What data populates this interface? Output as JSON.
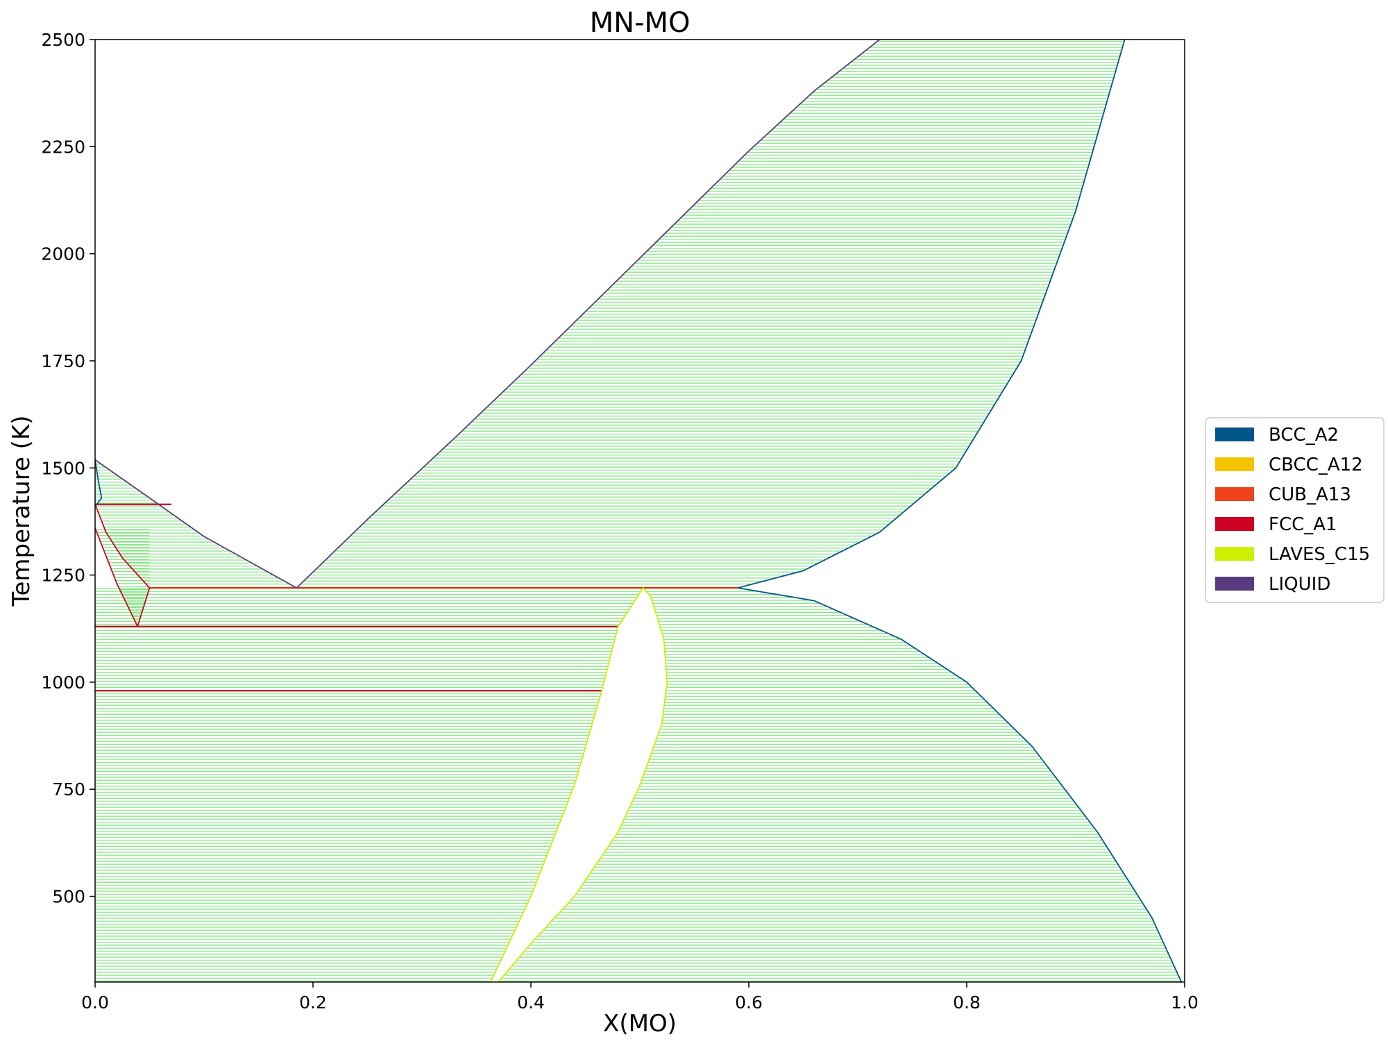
{
  "chart_data": {
    "type": "area",
    "title": "MN-MO",
    "xlabel": "X(MO)",
    "ylabel": "Temperature (K)",
    "xlim": [
      0.0,
      1.0
    ],
    "ylim": [
      300,
      2500
    ],
    "xticks": [
      0.0,
      0.2,
      0.4,
      0.6,
      0.8,
      1.0
    ],
    "xtick_labels": [
      "0.0",
      "0.2",
      "0.4",
      "0.6",
      "0.8",
      "1.0"
    ],
    "yticks": [
      500,
      750,
      1000,
      1250,
      1500,
      1750,
      2000,
      2250,
      2500
    ],
    "ytick_labels": [
      "500",
      "750",
      "1000",
      "1250",
      "1500",
      "1750",
      "2000",
      "2250",
      "2500"
    ],
    "grid": false,
    "legend_position": "right",
    "legend": [
      {
        "name": "BCC_A2",
        "color": "#00558a"
      },
      {
        "name": "CBCC_A12",
        "color": "#f5c400"
      },
      {
        "name": "CUB_A13",
        "color": "#f0421c"
      },
      {
        "name": "FCC_A1",
        "color": "#cc0022"
      },
      {
        "name": "LAVES_C15",
        "color": "#ccf000"
      },
      {
        "name": "LIQUID",
        "color": "#583b7f"
      }
    ],
    "tie_line_color": "#6fe06f",
    "two_phase_regions": [
      {
        "phases": "LIQUID+BCC_A2",
        "t_range": [
          1220,
          2500
        ],
        "left": [
          [
            0.185,
            1220
          ],
          [
            0.25,
            1380
          ],
          [
            0.33,
            1570
          ],
          [
            0.4,
            1740
          ],
          [
            0.5,
            1990
          ],
          [
            0.6,
            2240
          ],
          [
            0.66,
            2380
          ],
          [
            0.72,
            2500
          ]
        ],
        "right": [
          [
            0.59,
            1220
          ],
          [
            0.65,
            1260
          ],
          [
            0.72,
            1350
          ],
          [
            0.79,
            1500
          ],
          [
            0.85,
            1750
          ],
          [
            0.9,
            2100
          ],
          [
            0.945,
            2500
          ]
        ]
      },
      {
        "phases": "LIQUID+FCC_A1",
        "t_range": [
          1220,
          1519
        ],
        "left": [
          [
            0.185,
            1220
          ],
          [
            0.1,
            1340
          ],
          [
            0.05,
            1430
          ],
          [
            0.0,
            1519
          ]
        ],
        "right": [
          [
            0.05,
            1220
          ],
          [
            0.025,
            1290
          ],
          [
            0.01,
            1350
          ],
          [
            0.0,
            1415
          ]
        ]
      },
      {
        "phases": "FCC_A1+CUB_A13",
        "t_range": [
          1130,
          1360
        ],
        "left": [
          [
            0.039,
            1130
          ],
          [
            0.02,
            1230
          ],
          [
            0.0,
            1360
          ]
        ],
        "right": [
          [
            0.039,
            1130
          ],
          [
            0.05,
            1220
          ]
        ]
      },
      {
        "phases": "CUB_A13+LAVES_C15",
        "t_range": [
          300,
          1220
        ],
        "left": [
          [
            0.0,
            300
          ],
          [
            0.0,
            1220
          ]
        ],
        "right": [
          [
            0.363,
            300
          ],
          [
            0.4,
            500
          ],
          [
            0.44,
            760
          ],
          [
            0.465,
            980
          ],
          [
            0.48,
            1130
          ],
          [
            0.503,
            1220
          ]
        ]
      },
      {
        "phases": "LAVES_C15+BCC_A2",
        "t_range": [
          300,
          1220
        ],
        "left": [
          [
            0.37,
            300
          ],
          [
            0.4,
            390
          ],
          [
            0.44,
            500
          ],
          [
            0.48,
            650
          ],
          [
            0.5,
            760
          ],
          [
            0.52,
            900
          ],
          [
            0.525,
            1000
          ],
          [
            0.522,
            1100
          ],
          [
            0.51,
            1200
          ],
          [
            0.503,
            1220
          ]
        ],
        "right": [
          [
            0.997,
            300
          ],
          [
            0.97,
            450
          ],
          [
            0.92,
            650
          ],
          [
            0.86,
            850
          ],
          [
            0.8,
            1000
          ],
          [
            0.74,
            1100
          ],
          [
            0.66,
            1190
          ],
          [
            0.59,
            1220
          ]
        ]
      }
    ],
    "phase_boundaries": [
      {
        "phase": "LIQUID",
        "points": [
          [
            0.0,
            1519
          ],
          [
            0.05,
            1430
          ],
          [
            0.1,
            1340
          ],
          [
            0.185,
            1220
          ],
          [
            0.25,
            1380
          ],
          [
            0.33,
            1570
          ],
          [
            0.4,
            1740
          ],
          [
            0.5,
            1990
          ],
          [
            0.6,
            2240
          ],
          [
            0.66,
            2380
          ],
          [
            0.72,
            2500
          ]
        ]
      },
      {
        "phase": "BCC_A2",
        "points": [
          [
            0.945,
            2500
          ],
          [
            0.9,
            2100
          ],
          [
            0.85,
            1750
          ],
          [
            0.79,
            1500
          ],
          [
            0.72,
            1350
          ],
          [
            0.65,
            1260
          ],
          [
            0.59,
            1220
          ]
        ]
      },
      {
        "phase": "BCC_A2",
        "points": [
          [
            0.59,
            1220
          ],
          [
            0.66,
            1190
          ],
          [
            0.74,
            1100
          ],
          [
            0.8,
            1000
          ],
          [
            0.86,
            850
          ],
          [
            0.92,
            650
          ],
          [
            0.97,
            450
          ],
          [
            0.997,
            300
          ]
        ]
      },
      {
        "phase": "BCC_A2",
        "points": [
          [
            0.0,
            1519
          ],
          [
            0.003,
            1470
          ],
          [
            0.006,
            1430
          ],
          [
            0.0,
            1410
          ]
        ]
      },
      {
        "phase": "FCC_A1",
        "points": [
          [
            0.0,
            1415
          ],
          [
            0.01,
            1350
          ],
          [
            0.025,
            1290
          ],
          [
            0.05,
            1220
          ]
        ]
      },
      {
        "phase": "FCC_A1",
        "points": [
          [
            0.0,
            1360
          ],
          [
            0.02,
            1230
          ],
          [
            0.039,
            1130
          ],
          [
            0.05,
            1220
          ]
        ]
      },
      {
        "phase": "LAVES_C15",
        "points": [
          [
            0.363,
            300
          ],
          [
            0.4,
            500
          ],
          [
            0.44,
            760
          ],
          [
            0.465,
            980
          ],
          [
            0.48,
            1130
          ],
          [
            0.503,
            1220
          ],
          [
            0.51,
            1200
          ],
          [
            0.522,
            1100
          ],
          [
            0.525,
            1000
          ],
          [
            0.52,
            900
          ],
          [
            0.5,
            760
          ],
          [
            0.48,
            650
          ],
          [
            0.44,
            500
          ],
          [
            0.4,
            390
          ],
          [
            0.37,
            300
          ]
        ]
      }
    ],
    "invariant_lines": [
      {
        "t": 1220,
        "x": [
          0.05,
          0.59
        ],
        "color": "#e03020"
      },
      {
        "t": 1415,
        "x": [
          0.0,
          0.07
        ],
        "color": "#cc0022"
      },
      {
        "t": 1130,
        "x": [
          0.0,
          0.48
        ],
        "color": "#cc0022"
      },
      {
        "t": 980,
        "x": [
          0.0,
          0.465
        ],
        "color": "#cc0022"
      }
    ]
  }
}
